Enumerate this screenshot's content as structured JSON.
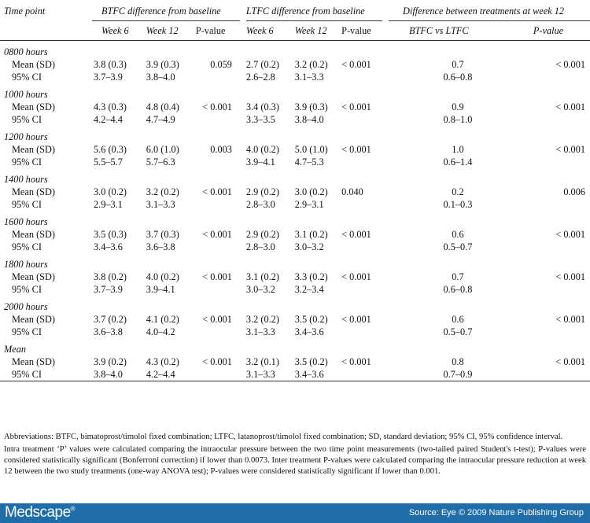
{
  "table": {
    "col_timepoint": "Time point",
    "group_btfc": "BTFC difference from baseline",
    "group_ltfc": "LTFC difference from baseline",
    "group_diff": "Difference between treatments at week 12",
    "sub": {
      "week6": "Week 6",
      "week12": "Week 12",
      "pvalue": "P-value",
      "btfc_vs_ltfc": "BTFC vs LTFC",
      "pvalue_italic": "P-value"
    },
    "label_mean": "Mean (SD)",
    "label_ci": "95% CI",
    "rows": [
      {
        "time": "0800 hours",
        "mean": [
          "3.8 (0.3)",
          "3.9 (0.3)",
          "0.059",
          "2.7 (0.2)",
          "3.2 (0.2)",
          "< 0.001",
          "0.7",
          "< 0.001"
        ],
        "ci": [
          "3.7–3.9",
          "3.8–4.0",
          "2.6–2.8",
          "3.1–3.3",
          "0.6–0.8"
        ]
      },
      {
        "time": "1000 hours",
        "mean": [
          "4.3 (0.3)",
          "4.8 (0.4)",
          "< 0.001",
          "3.4 (0.3)",
          "3.9 (0.3)",
          "< 0.001",
          "0.9",
          "< 0.001"
        ],
        "ci": [
          "4.2–4.4",
          "4.7–4.9",
          "3.3–3.5",
          "3.8–4.0",
          "0.8–1.0"
        ]
      },
      {
        "time": "1200 hours",
        "mean": [
          "5.6 (0.3)",
          "6.0 (1.0)",
          "0.003",
          "4.0 (0.2)",
          "5.0 (1.0)",
          "< 0.001",
          "1.0",
          "< 0.001"
        ],
        "ci": [
          "5.5–5.7",
          "5.7–6.3",
          "3.9–4.1",
          "4.7–5.3",
          "0.6–1.4"
        ]
      },
      {
        "time": "1400 hours",
        "mean": [
          "3.0 (0.2)",
          "3.2 (0.2)",
          "< 0.001",
          "2.9 (0.2)",
          "3.0 (0.2)",
          "0.040",
          "0.2",
          "0.006"
        ],
        "ci": [
          "2.9–3.1",
          "3.1–3.3",
          "2.8–3.0",
          "2.9–3.1",
          "0.1–0.3"
        ]
      },
      {
        "time": "1600 hours",
        "mean": [
          "3.5 (0.3)",
          "3.7 (0.3)",
          "< 0.001",
          "2.9 (0.2)",
          "3.1 (0.2)",
          "< 0.001",
          "0.6",
          "< 0.001"
        ],
        "ci": [
          "3.4–3.6",
          "3.6–3.8",
          "2.8–3.0",
          "3.0–3.2",
          "0.5–0.7"
        ]
      },
      {
        "time": "1800 hours",
        "mean": [
          "3.8 (0.2)",
          "4.0 (0.2)",
          "< 0.001",
          "3.1 (0.2)",
          "3.3 (0.2)",
          "< 0.001",
          "0.7",
          "< 0.001"
        ],
        "ci": [
          "3.7–3.9",
          "3.9–4.1",
          "3.0–3.2",
          "3.2–3.4",
          "0.6–0.8"
        ]
      },
      {
        "time": "2000 hours",
        "mean": [
          "3.7 (0.2)",
          "4.1 (0.2)",
          "< 0.001",
          "3.2 (0.2)",
          "3.5 (0.2)",
          "< 0.001",
          "0.6",
          "< 0.001"
        ],
        "ci": [
          "3.6–3.8",
          "4.0–4.2",
          "3.1–3.3",
          "3.4–3.6",
          "0.5–0.7"
        ]
      },
      {
        "time": "Mean",
        "mean": [
          "3.9 (0.2)",
          "4.3 (0.2)",
          "< 0.001",
          "3.2 (0.1)",
          "3.5 (0.2)",
          "< 0.001",
          "0.8",
          "< 0.001"
        ],
        "ci": [
          "3.8–4.0",
          "4.2–4.4",
          "3.1–3.3",
          "3.4–3.6",
          "0.7–0.9"
        ]
      }
    ]
  },
  "footnotes": {
    "abbrev": "Abbreviations: BTFC, bimatoprost/timolol fixed combination; LTFC, latanoprost/timolol fixed combination; SD, standard deviation; 95% CI, 95% confidence interval.",
    "note": "Intra treatment ‘P’ values were calculated comparing the intraocular pressure between the two time point measurements (two-tailed paired Student's t-test); P-values were considered statistically significant (Bonferroni correction) if lower than 0.0073. Inter treatment P-values were calculated comparing the intraocular pressure reduction at week 12 between the two study treatments (one-way ANOVA test); P-values were considered statistically significant if lower than 0.001."
  },
  "footer": {
    "logo": "Medscape",
    "logo_mark": "®",
    "source": "Source: Eye © 2009 Nature Publishing Group",
    "bar_color": "#1f6eaa"
  }
}
